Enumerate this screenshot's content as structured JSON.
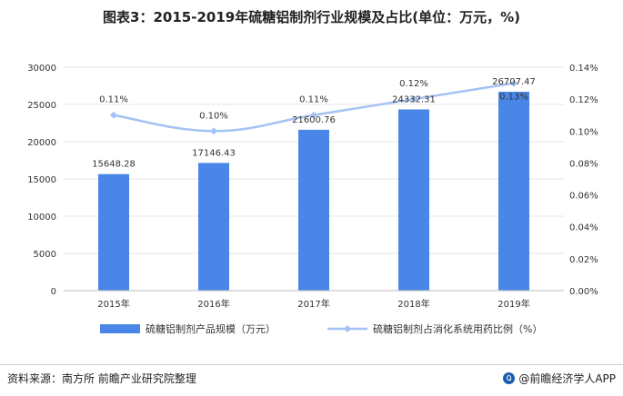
{
  "title": "图表3：2015-2019年硫糖铝制剂行业规模及占比(单位：万元，%)",
  "source": "资料来源：南方所 前瞻产业研究院整理",
  "brand": "@前瞻经济学人APP",
  "colors": {
    "bar": "#4a86e8",
    "line": "#a4c2f4",
    "grid": "#e6e6e6",
    "axis": "#444444"
  },
  "chart_data": {
    "type": "bar",
    "categories": [
      "2015年",
      "2016年",
      "2017年",
      "2018年",
      "2019年"
    ],
    "series": [
      {
        "name": "硫糖铝制剂产品规模（万元）",
        "type": "bar",
        "axis": "left",
        "values": [
          15648.28,
          17146.43,
          21600.76,
          24332.31,
          26707.47
        ],
        "labels": [
          "15648.28",
          "17146.43",
          "21600.76",
          "24332.31",
          "26707.47"
        ]
      },
      {
        "name": "硫糖铝制剂占消化系统用药比例（%）",
        "type": "line",
        "axis": "right",
        "values": [
          0.11,
          0.1,
          0.11,
          0.12,
          0.13
        ],
        "labels": [
          "0.11%",
          "0.10%",
          "0.11%",
          "0.12%",
          "0.13%"
        ]
      }
    ],
    "y_left": {
      "min": 0,
      "max": 30000,
      "ticks": [
        "0",
        "5000",
        "10000",
        "15000",
        "20000",
        "25000",
        "30000"
      ]
    },
    "y_right": {
      "min": 0,
      "max": 0.14,
      "ticks": [
        "0.00%",
        "0.02%",
        "0.04%",
        "0.06%",
        "0.08%",
        "0.10%",
        "0.12%",
        "0.14%"
      ]
    },
    "grid": true,
    "legend_position": "bottom"
  }
}
